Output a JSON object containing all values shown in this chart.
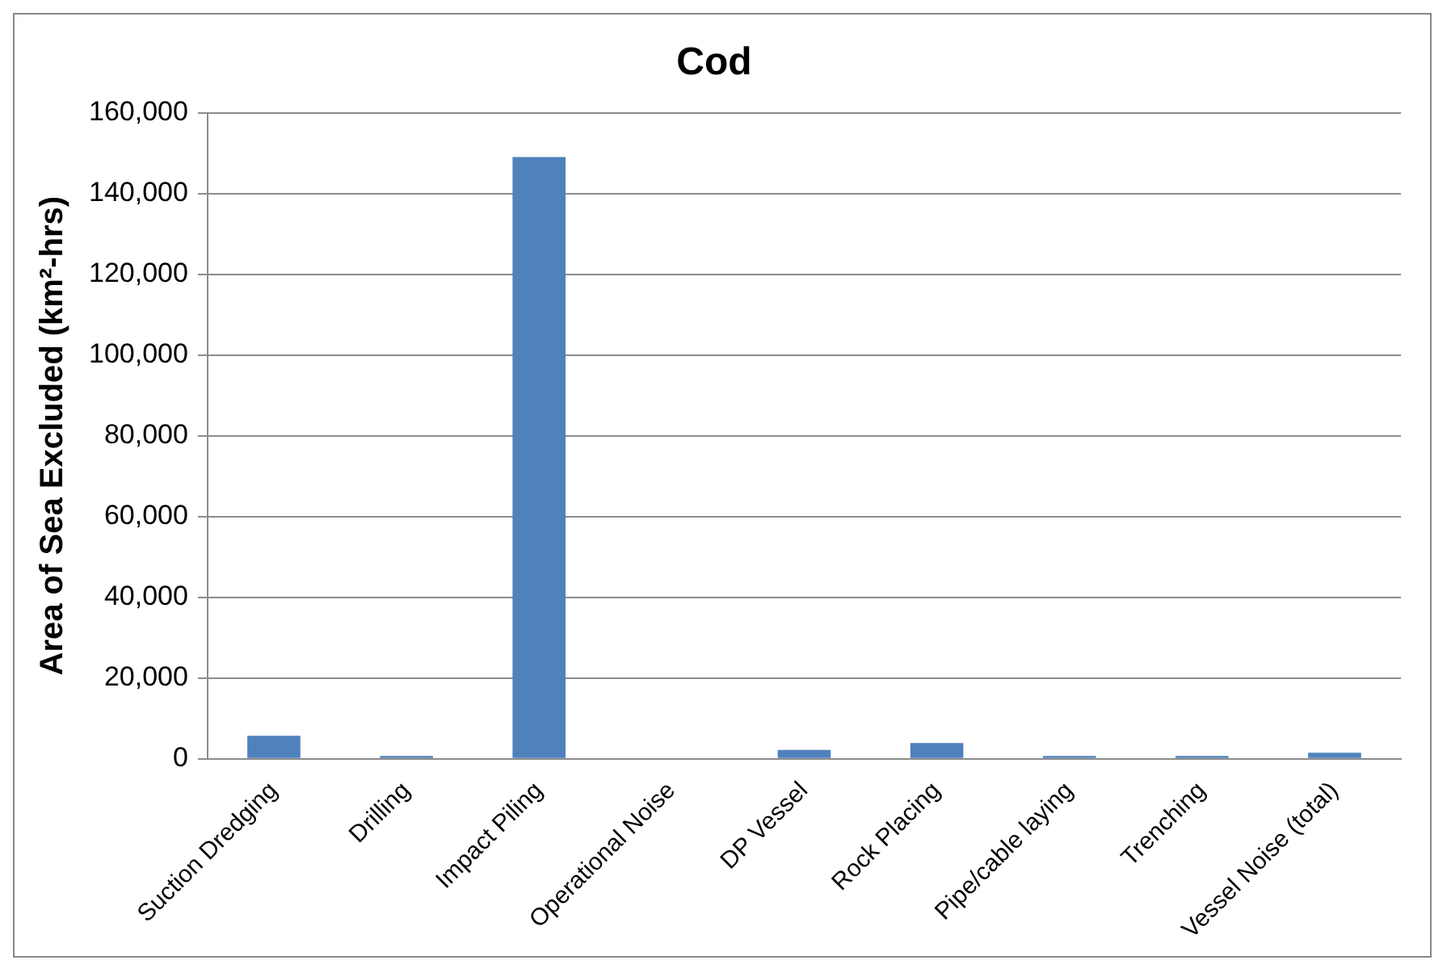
{
  "chart_data": {
    "type": "bar",
    "title": "Cod",
    "ylabel": "Area of Sea Excluded (km²-hrs)",
    "categories": [
      "Suction Dredging",
      "Drilling",
      "Impact Piling",
      "Operational Noise",
      "DP Vessel",
      "Rock Placing",
      "Pipe/cable laying",
      "Trenching",
      "Vessel Noise (total)"
    ],
    "values": [
      5700,
      700,
      149000,
      0,
      2200,
      3900,
      700,
      700,
      1500
    ],
    "color": "#4f81bd",
    "ylim": [
      0,
      160000
    ],
    "yticks": [
      0,
      {
        "value": 20000,
        "label": "20,000"
      },
      {
        "value": 40000,
        "label": "40,000"
      },
      {
        "value": 60000,
        "label": "60,000"
      },
      {
        "value": 80000,
        "label": "80,000"
      },
      {
        "value": 100000,
        "label": "100,000"
      },
      {
        "value": 120000,
        "label": "120,000"
      },
      {
        "value": 140000,
        "label": "140,000"
      },
      {
        "value": 160000,
        "label": "160,000"
      }
    ],
    "grid": "y",
    "legend": false
  }
}
